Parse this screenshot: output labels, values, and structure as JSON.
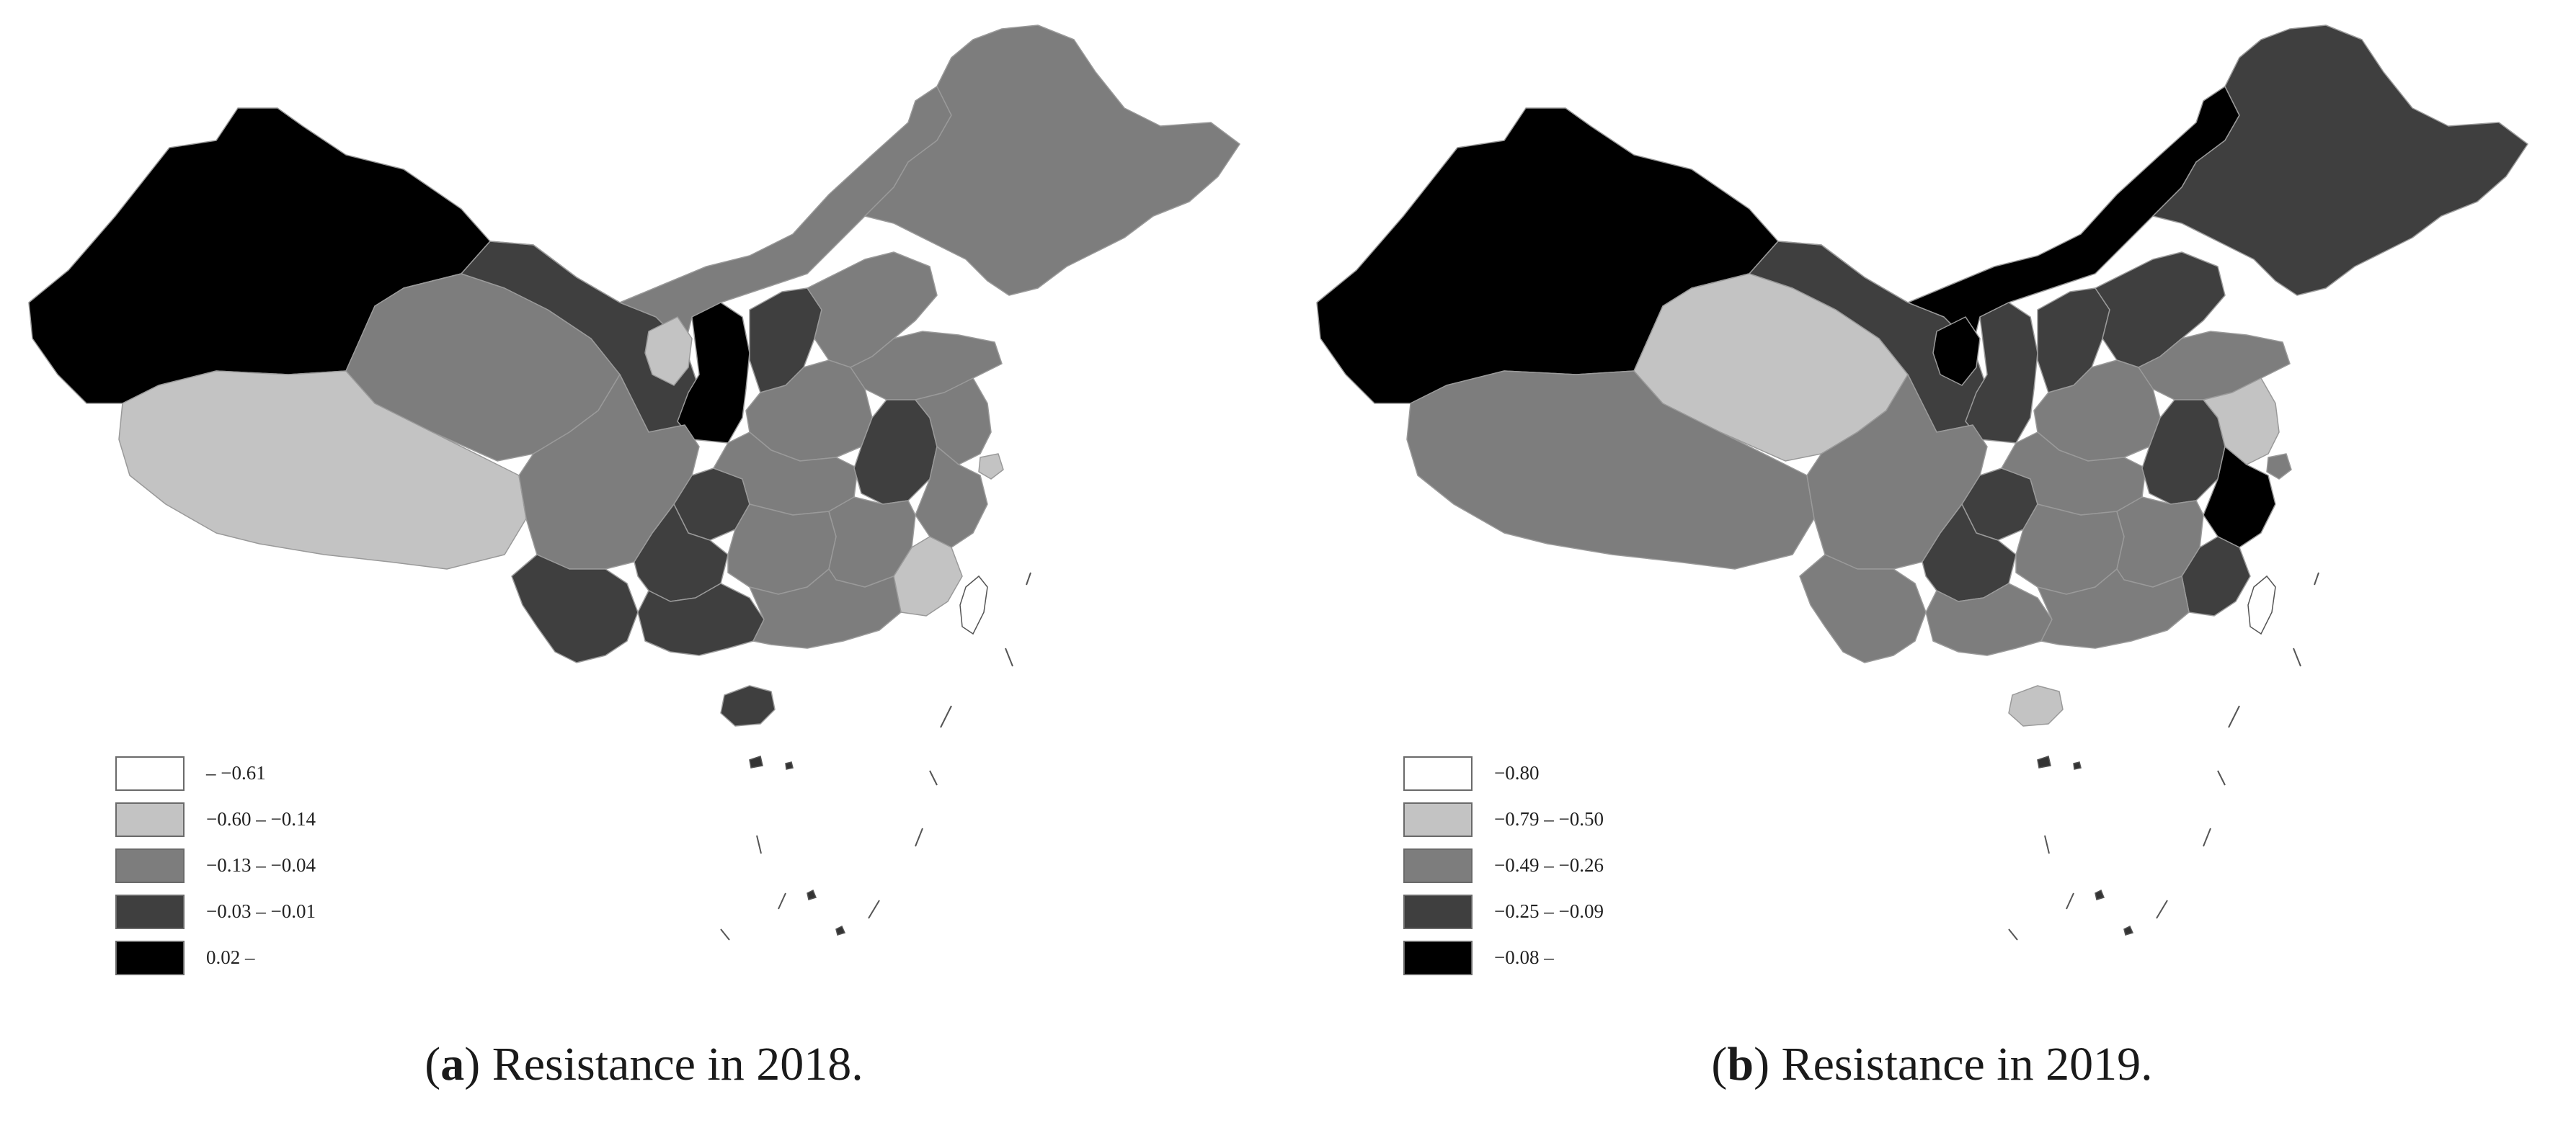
{
  "colors": {
    "class1": "#ffffff",
    "class2": "#c3c3c3",
    "class3": "#7d7d7d",
    "class4": "#3f3f3f",
    "class5": "#000000",
    "border": "#9a9a9a",
    "outline": "#6a6a6a"
  },
  "panels": [
    {
      "tag": "a",
      "caption_rest": "Resistance in 2018.",
      "legend": [
        {
          "label": "– −0.61",
          "class": "class1"
        },
        {
          "label": "−0.60 – −0.14",
          "class": "class2"
        },
        {
          "label": "−0.13 – −0.04",
          "class": "class3"
        },
        {
          "label": "−0.03 – −0.01",
          "class": "class4"
        },
        {
          "label": "0.02 –",
          "class": "class5"
        }
      ],
      "regions": {
        "northwest": "class5",
        "tibet": "class2",
        "qinghai": "class3",
        "gansu": "class4",
        "inner_mongolia": "class3",
        "northeast": "class3",
        "ningxia": "class2",
        "shaanxi": "class5",
        "shanxi": "class4",
        "beijing": "class5",
        "hebei": "class3",
        "shandong": "class3",
        "henan": "class3",
        "sichuan": "class3",
        "chongqing": "class4",
        "hubei": "class3",
        "anhui": "class4",
        "jiangsu": "class3",
        "shanghai": "class2",
        "zhejiang": "class3",
        "yunnan": "class4",
        "guizhou": "class4",
        "guangxi": "class4",
        "hunan": "class3",
        "jiangxi": "class3",
        "fujian": "class2",
        "guangdong": "class3",
        "hainan": "class4"
      }
    },
    {
      "tag": "b",
      "caption_rest": "Resistance in 2019.",
      "legend": [
        {
          "label": "−0.80",
          "class": "class1"
        },
        {
          "label": "−0.79 – −0.50",
          "class": "class2"
        },
        {
          "label": "−0.49 – −0.26",
          "class": "class3"
        },
        {
          "label": "−0.25 – −0.09",
          "class": "class4"
        },
        {
          "label": "−0.08 –",
          "class": "class5"
        }
      ],
      "regions": {
        "northwest": "class5",
        "tibet": "class3",
        "qinghai": "class2",
        "gansu": "class4",
        "inner_mongolia": "class5",
        "northeast": "class4",
        "ningxia": "class5",
        "shaanxi": "class4",
        "shanxi": "class4",
        "beijing": "class2",
        "hebei": "class4",
        "shandong": "class3",
        "henan": "class3",
        "sichuan": "class3",
        "chongqing": "class4",
        "hubei": "class3",
        "anhui": "class4",
        "jiangsu": "class2",
        "shanghai": "class3",
        "zhejiang": "class5",
        "yunnan": "class3",
        "guizhou": "class4",
        "guangxi": "class3",
        "hunan": "class3",
        "jiangxi": "class3",
        "fujian": "class4",
        "guangdong": "class3",
        "hainan": "class2"
      }
    }
  ]
}
